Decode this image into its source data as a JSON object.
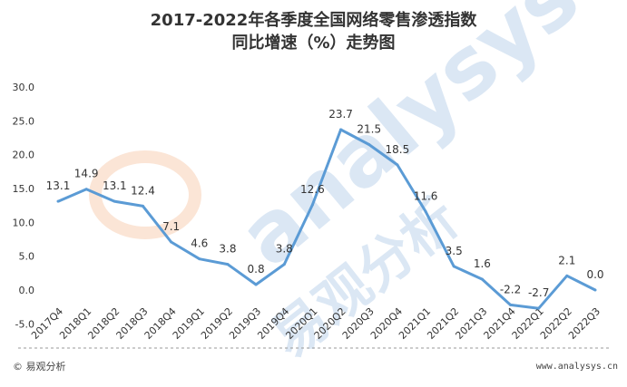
{
  "chart_data": {
    "type": "line",
    "title_line1": "2017-2022年各季度全国网络零售渗透指数",
    "title_line2": "同比增速（%）走势图",
    "categories": [
      "2017Q4",
      "2018Q1",
      "2018Q2",
      "2018Q3",
      "2018Q4",
      "2019Q1",
      "2019Q2",
      "2019Q3",
      "2019Q4",
      "2020Q1",
      "2020Q2",
      "2020Q3",
      "2020Q4",
      "2021Q1",
      "2021Q2",
      "2021Q3",
      "2021Q4",
      "2022Q1",
      "2022Q2",
      "2022Q3"
    ],
    "values": [
      13.1,
      14.9,
      13.1,
      12.4,
      7.1,
      4.6,
      3.8,
      0.8,
      3.8,
      12.6,
      23.7,
      21.5,
      18.5,
      11.6,
      3.5,
      1.6,
      -2.2,
      -2.7,
      2.1,
      0.0
    ],
    "data_labels": [
      "13.1",
      "14.9",
      "13.1",
      "12.4",
      "7.1",
      "4.6",
      "3.8",
      "0.8",
      "3.8",
      "12.6",
      "23.7",
      "21.5",
      "18.5",
      "11.6",
      "3.5",
      "1.6",
      "-2.2",
      "-2.7",
      "2.1",
      "0.0"
    ],
    "y_ticks": [
      "-5.0",
      "0.0",
      "5.0",
      "10.0",
      "15.0",
      "20.0",
      "25.0",
      "30.0"
    ],
    "ylim": [
      -5,
      30
    ],
    "line_color": "#5b9bd5",
    "grid": false,
    "legend": "none"
  },
  "watermark": {
    "latin": "analysys",
    "chinese": "易观分析",
    "color": "#dbe7f4",
    "accent_color": "#fbe5d6"
  },
  "footer": {
    "left": "© 易观分析",
    "right": "www.analysys.cn"
  }
}
